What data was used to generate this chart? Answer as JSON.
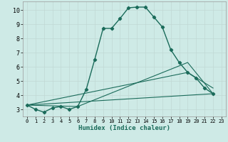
{
  "xlabel": "Humidex (Indice chaleur)",
  "background_color": "#ceeae6",
  "grid_color": "#c0d8d4",
  "line_color": "#1a6b5a",
  "xlim": [
    -0.5,
    23.5
  ],
  "ylim": [
    2.5,
    10.6
  ],
  "xticks": [
    0,
    1,
    2,
    3,
    4,
    5,
    6,
    7,
    8,
    9,
    10,
    11,
    12,
    13,
    14,
    15,
    16,
    17,
    18,
    19,
    20,
    21,
    22,
    23
  ],
  "yticks": [
    3,
    4,
    5,
    6,
    7,
    8,
    9,
    10
  ],
  "main_line": {
    "x": [
      0,
      1,
      2,
      3,
      4,
      5,
      6,
      7,
      8,
      9,
      10,
      11,
      12,
      13,
      14,
      15,
      16,
      17,
      18,
      19,
      20,
      21,
      22
    ],
    "y": [
      3.3,
      3.0,
      2.8,
      3.1,
      3.2,
      3.0,
      3.2,
      4.4,
      6.5,
      8.7,
      8.7,
      9.4,
      10.15,
      10.2,
      10.2,
      9.5,
      8.8,
      7.2,
      6.3,
      5.6,
      5.2,
      4.5,
      4.1
    ]
  },
  "flat_lines": [
    {
      "x": [
        0,
        22
      ],
      "y": [
        3.3,
        4.1
      ]
    },
    {
      "x": [
        0,
        19,
        22
      ],
      "y": [
        3.3,
        5.6,
        4.5
      ]
    },
    {
      "x": [
        0,
        6,
        19,
        22
      ],
      "y": [
        3.3,
        3.2,
        6.3,
        4.1
      ]
    }
  ]
}
